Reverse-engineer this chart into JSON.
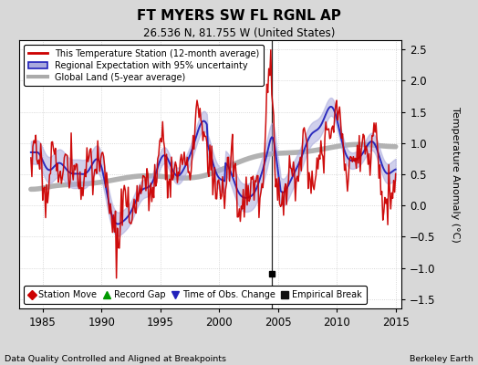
{
  "title": "FT MYERS SW FL RGNL AP",
  "subtitle": "26.536 N, 81.755 W (United States)",
  "ylabel": "Temperature Anomaly (°C)",
  "footer_left": "Data Quality Controlled and Aligned at Breakpoints",
  "footer_right": "Berkeley Earth",
  "xlim": [
    1983.0,
    2015.5
  ],
  "ylim": [
    -1.65,
    2.65
  ],
  "yticks": [
    -1.5,
    -1.0,
    -0.5,
    0.0,
    0.5,
    1.0,
    1.5,
    2.0,
    2.5
  ],
  "xticks": [
    1985,
    1990,
    1995,
    2000,
    2005,
    2010,
    2015
  ],
  "fig_bg_color": "#d8d8d8",
  "plot_bg_color": "#ffffff",
  "station_color": "#cc0000",
  "regional_color": "#2222bb",
  "regional_fill_color": "#aaaadd",
  "global_color": "#aaaaaa",
  "empirical_break_year": 2004.5,
  "empirical_break_value": -1.1,
  "legend_items": [
    "This Temperature Station (12-month average)",
    "Regional Expectation with 95% uncertainty",
    "Global Land (5-year average)"
  ],
  "bottom_legend": [
    {
      "marker": "D",
      "color": "#cc0000",
      "label": "Station Move"
    },
    {
      "marker": "^",
      "color": "#009900",
      "label": "Record Gap"
    },
    {
      "marker": "v",
      "color": "#2222bb",
      "label": "Time of Obs. Change"
    },
    {
      "marker": "s",
      "color": "#111111",
      "label": "Empirical Break"
    }
  ]
}
